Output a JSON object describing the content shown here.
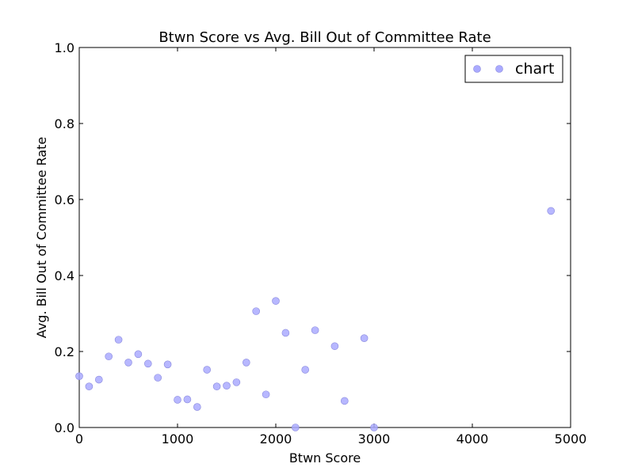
{
  "chart_data": {
    "type": "scatter",
    "title": "Btwn Score vs Avg. Bill Out of Committee Rate",
    "xlabel": "Btwn Score",
    "ylabel": "Avg. Bill Out of Committee Rate",
    "xlim": [
      0,
      5000
    ],
    "ylim": [
      0.0,
      1.0
    ],
    "xticks": [
      "0",
      "1000",
      "2000",
      "3000",
      "4000",
      "5000"
    ],
    "yticks": [
      "0.0",
      "0.2",
      "0.4",
      "0.6",
      "0.8",
      "1.0"
    ],
    "grid": false,
    "legend": {
      "placement": "top-right",
      "entries": [
        "chart"
      ]
    },
    "marker_color": "#aaaaff",
    "marker_edge_color": "#8888dd",
    "series": [
      {
        "name": "chart",
        "points": [
          {
            "x": 0,
            "y": 0.135
          },
          {
            "x": 100,
            "y": 0.108
          },
          {
            "x": 200,
            "y": 0.126
          },
          {
            "x": 300,
            "y": 0.187
          },
          {
            "x": 400,
            "y": 0.231
          },
          {
            "x": 500,
            "y": 0.171
          },
          {
            "x": 600,
            "y": 0.193
          },
          {
            "x": 700,
            "y": 0.168
          },
          {
            "x": 800,
            "y": 0.131
          },
          {
            "x": 900,
            "y": 0.166
          },
          {
            "x": 1000,
            "y": 0.073
          },
          {
            "x": 1100,
            "y": 0.074
          },
          {
            "x": 1200,
            "y": 0.054
          },
          {
            "x": 1300,
            "y": 0.152
          },
          {
            "x": 1400,
            "y": 0.108
          },
          {
            "x": 1500,
            "y": 0.11
          },
          {
            "x": 1600,
            "y": 0.119
          },
          {
            "x": 1700,
            "y": 0.171
          },
          {
            "x": 1800,
            "y": 0.306
          },
          {
            "x": 1900,
            "y": 0.087
          },
          {
            "x": 2000,
            "y": 0.333
          },
          {
            "x": 2100,
            "y": 0.249
          },
          {
            "x": 2200,
            "y": 0.0
          },
          {
            "x": 2300,
            "y": 0.152
          },
          {
            "x": 2400,
            "y": 0.256
          },
          {
            "x": 2600,
            "y": 0.214
          },
          {
            "x": 2700,
            "y": 0.07
          },
          {
            "x": 2900,
            "y": 0.235
          },
          {
            "x": 3000,
            "y": 0.0
          },
          {
            "x": 4800,
            "y": 0.57
          }
        ]
      }
    ]
  }
}
